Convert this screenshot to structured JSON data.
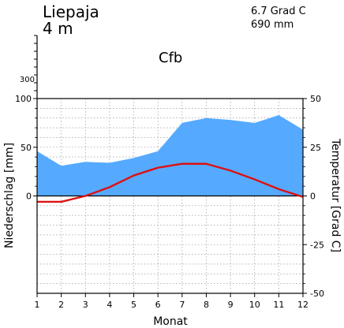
{
  "header": {
    "station": "Liepaja",
    "elevation": "4 m",
    "mean_temp": "6.7 Grad C",
    "annual_precip": "690 mm",
    "climate_class": "Cfb"
  },
  "chart_data": {
    "type": "area",
    "title": "",
    "xlabel": "Monat",
    "ylabel_left": "Niederschlag [mm]",
    "ylabel_right": "Temperatur [Grad C]",
    "categories": [
      "1",
      "2",
      "3",
      "4",
      "5",
      "6",
      "7",
      "8",
      "9",
      "10",
      "11",
      "12"
    ],
    "series": [
      {
        "kind": "area",
        "axis": "precip",
        "color": "#55aaff",
        "values": [
          46,
          31,
          35,
          34,
          39,
          46,
          75,
          80,
          78,
          75,
          83,
          68
        ]
      },
      {
        "kind": "line",
        "axis": "temp",
        "color": "#dd1111",
        "values": [
          -3,
          -3,
          0,
          4.5,
          10.5,
          14.5,
          16.5,
          16.5,
          13,
          8.5,
          3.5,
          -0.5
        ]
      }
    ],
    "precip_axis": {
      "ylim": [
        0,
        100
      ],
      "ticks": [
        "0",
        "50",
        "100"
      ],
      "extra_tick": "300"
    },
    "temp_axis": {
      "ylim": [
        -50,
        50
      ],
      "ticks": [
        "50",
        "25",
        "0",
        "-25",
        "-50"
      ]
    },
    "grid": true
  }
}
